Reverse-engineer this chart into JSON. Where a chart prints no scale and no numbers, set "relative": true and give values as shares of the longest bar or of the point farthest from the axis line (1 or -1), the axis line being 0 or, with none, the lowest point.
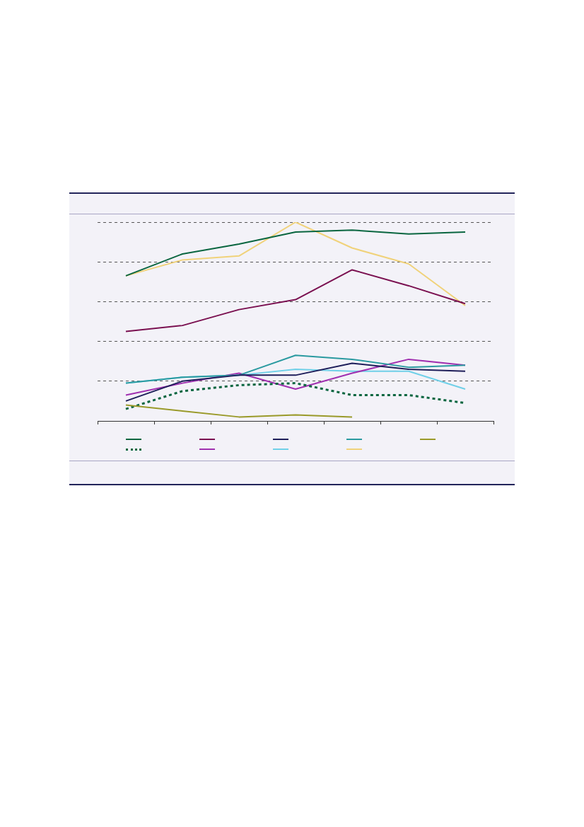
{
  "chart_data": {
    "type": "line",
    "relative": true,
    "grid": "y",
    "tick_labels": false,
    "marker": "none",
    "categories": [
      null,
      null,
      null,
      null,
      null,
      null,
      null
    ],
    "series": [
      {
        "color": "#0a6640",
        "values": [
          0.73,
          0.84,
          0.89,
          0.95,
          0.96,
          0.94,
          0.95
        ]
      },
      {
        "color": "#7a1050",
        "values": [
          0.45,
          0.48,
          0.56,
          0.61,
          0.76,
          0.68,
          0.59
        ]
      },
      {
        "color": "#1e1e5a",
        "values": [
          0.1,
          0.2,
          0.23,
          0.23,
          0.29,
          0.26,
          0.25
        ]
      },
      {
        "color": "#2a9aa0",
        "values": [
          0.19,
          0.22,
          0.23,
          0.33,
          0.31,
          0.27,
          0.28
        ]
      },
      {
        "color": "#9a9a2a",
        "values": [
          0.08,
          0.05,
          0.02,
          0.03,
          0.02,
          null,
          null
        ]
      },
      {
        "color": "#0a6640",
        "line_style": "dotted",
        "values": [
          0.06,
          0.15,
          0.18,
          0.19,
          0.13,
          0.13,
          0.09
        ]
      },
      {
        "color": "#a030b0",
        "values": [
          0.13,
          0.19,
          0.24,
          0.16,
          0.24,
          0.31,
          0.28
        ]
      },
      {
        "color": "#70d0e8",
        "values": [
          0.19,
          0.22,
          0.23,
          0.26,
          0.25,
          0.25,
          0.16
        ]
      },
      {
        "color": "#f0d27a",
        "values": [
          0.73,
          0.81,
          0.83,
          1,
          0.87,
          0.79,
          0.58
        ]
      }
    ]
  }
}
